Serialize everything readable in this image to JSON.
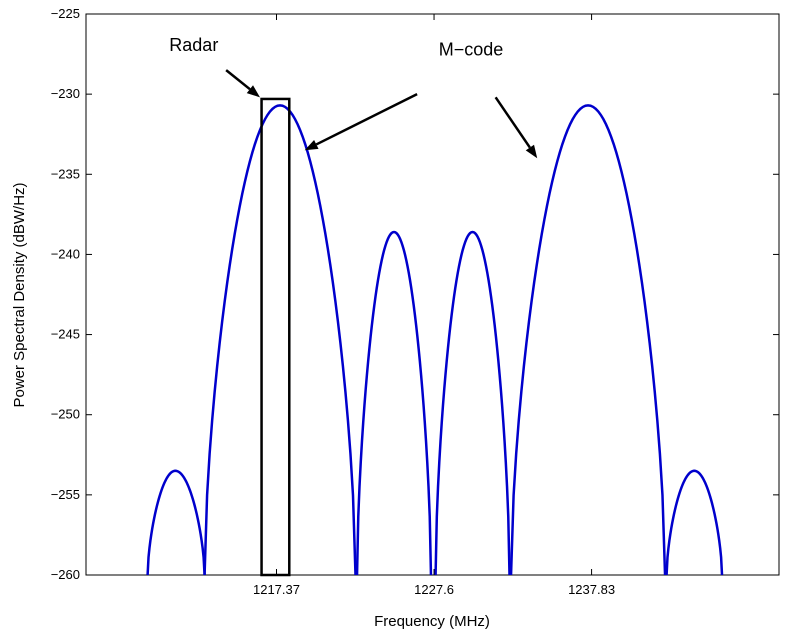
{
  "chart_data": {
    "type": "line",
    "xlabel": "Frequency (MHz)",
    "ylabel": "Power Spectral Density (dBW/Hz)",
    "xlim": [
      1205.0,
      1250.0
    ],
    "ylim": [
      -260,
      -225
    ],
    "x_ticks": [
      1217.37,
      1227.6,
      1237.83
    ],
    "x_tick_labels": [
      "1217.37",
      "1227.6",
      "1237.83"
    ],
    "y_ticks": [
      -260,
      -255,
      -250,
      -245,
      -240,
      -235,
      -230,
      -225
    ],
    "y_tick_labels": [
      "−260",
      "−255",
      "−250",
      "−245",
      "−240",
      "−235",
      "−230",
      "−225"
    ],
    "grid": false,
    "series": [
      {
        "color": "#0000cc",
        "lobes": [
          {
            "x_start": 1209.0,
            "x_end": 1212.7,
            "peak_x": 1210.8,
            "peak_y": -253.5
          },
          {
            "x_start": 1212.7,
            "x_end": 1222.5,
            "peak_x": 1217.6,
            "peak_y": -230.7
          },
          {
            "x_start": 1222.6,
            "x_end": 1227.4,
            "peak_x": 1225.0,
            "peak_y": -238.6
          },
          {
            "x_start": 1227.7,
            "x_end": 1232.5,
            "peak_x": 1230.1,
            "peak_y": -238.6
          },
          {
            "x_start": 1232.6,
            "x_end": 1242.6,
            "peak_x": 1237.6,
            "peak_y": -230.7
          },
          {
            "x_start": 1242.7,
            "x_end": 1246.3,
            "peak_x": 1244.5,
            "peak_y": -253.5
          }
        ]
      }
    ],
    "radar_box": {
      "x0": 1216.4,
      "x1": 1218.2,
      "y_top": -230.3,
      "y_bottom": -260
    },
    "annotations": [
      {
        "text": "Radar",
        "text_x": 1212.0,
        "text_y": -227.3,
        "arrow_from": [
          1214.1,
          -228.5
        ],
        "arrow_to": [
          1216.3,
          -230.2
        ]
      },
      {
        "text": "M−code",
        "text_x": 1230.0,
        "text_y": -227.6,
        "arrow_from": [
          1226.5,
          -230.0
        ],
        "arrow_to": [
          1219.2,
          -233.5
        ]
      },
      {
        "text": "",
        "text_x": 0,
        "text_y": 0,
        "arrow_from": [
          1231.6,
          -230.2
        ],
        "arrow_to": [
          1234.3,
          -234.0
        ]
      }
    ]
  }
}
